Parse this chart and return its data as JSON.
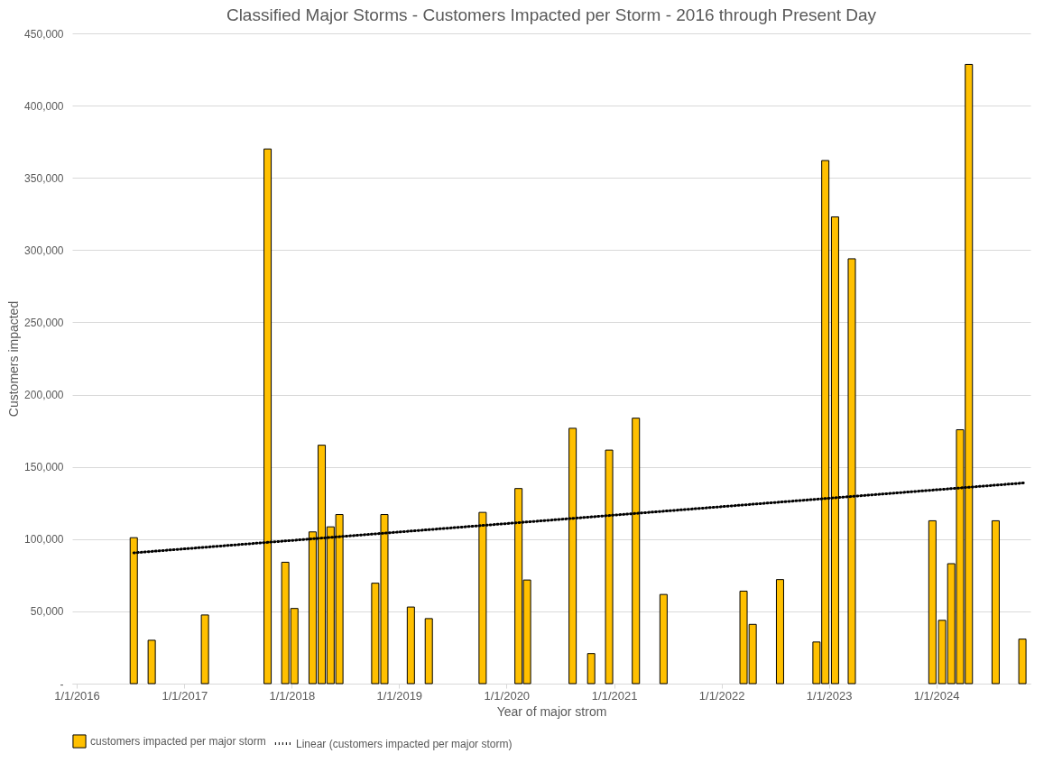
{
  "chart_data": {
    "type": "bar",
    "title": "Classified Major Storms - Customers Impacted per Storm - 2016 through Present Day",
    "xlabel": "Year of major strom",
    "ylabel": "Customers impacted",
    "x": [
      "2016-07-13",
      "2016-09-12",
      "2017-03-12",
      "2017-10-11",
      "2017-12-10",
      "2018-01-10",
      "2018-03-13",
      "2018-04-13",
      "2018-05-13",
      "2018-06-12",
      "2018-10-12",
      "2018-11-12",
      "2019-02-10",
      "2019-04-12",
      "2019-10-12",
      "2020-02-11",
      "2020-03-11",
      "2020-08-13",
      "2020-10-15",
      "2020-12-15",
      "2021-03-16",
      "2021-06-18",
      "2022-03-17",
      "2022-04-17",
      "2022-07-19",
      "2022-11-20",
      "2022-12-20",
      "2023-01-22",
      "2023-03-20",
      "2023-12-19",
      "2024-01-21",
      "2024-02-21",
      "2024-03-22",
      "2024-04-21",
      "2024-07-21",
      "2024-10-20"
    ],
    "series": [
      {
        "name": "customers impacted per major storm",
        "color": "#ffc000",
        "values": [
          101000,
          30000,
          47500,
          370000,
          84000,
          52000,
          105000,
          165000,
          108500,
          117000,
          69500,
          117000,
          53000,
          45000,
          118500,
          135000,
          71700,
          176700,
          20800,
          161600,
          183700,
          61700,
          64000,
          41000,
          72000,
          28800,
          362000,
          323000,
          294000,
          112700,
          43800,
          83000,
          175700,
          428500,
          112700,
          30800
        ]
      },
      {
        "name": "Linear (customers impacted per major storm)",
        "type": "line",
        "color": "#000000",
        "line_style": "dotted",
        "x": [
          "2016-07-13",
          "2024-11-01"
        ],
        "values": [
          90500,
          139000
        ]
      }
    ],
    "xlim": [
      "2016-01-01",
      "2024-11-01"
    ],
    "xticks": [
      {
        "value": "2016-01-01",
        "label": "1/1/2016"
      },
      {
        "value": "2017-01-01",
        "label": "1/1/2017"
      },
      {
        "value": "2018-01-01",
        "label": "1/1/2018"
      },
      {
        "value": "2019-01-01",
        "label": "1/1/2019"
      },
      {
        "value": "2020-01-01",
        "label": "1/1/2020"
      },
      {
        "value": "2021-01-01",
        "label": "1/1/2021"
      },
      {
        "value": "2022-01-01",
        "label": "1/1/2022"
      },
      {
        "value": "2023-01-01",
        "label": "1/1/2023"
      },
      {
        "value": "2024-01-01",
        "label": "1/1/2024"
      }
    ],
    "ylim": [
      0,
      450000
    ],
    "yticks": [
      {
        "value": 0,
        "label": "-"
      },
      {
        "value": 50000,
        "label": "50,000"
      },
      {
        "value": 100000,
        "label": "100,000"
      },
      {
        "value": 150000,
        "label": "150,000"
      },
      {
        "value": 200000,
        "label": "200,000"
      },
      {
        "value": 250000,
        "label": "250,000"
      },
      {
        "value": 300000,
        "label": "300,000"
      },
      {
        "value": 350000,
        "label": "350,000"
      },
      {
        "value": 400000,
        "label": "400,000"
      },
      {
        "value": 450000,
        "label": "450,000"
      }
    ],
    "grid": "y",
    "legend": "bottom"
  }
}
